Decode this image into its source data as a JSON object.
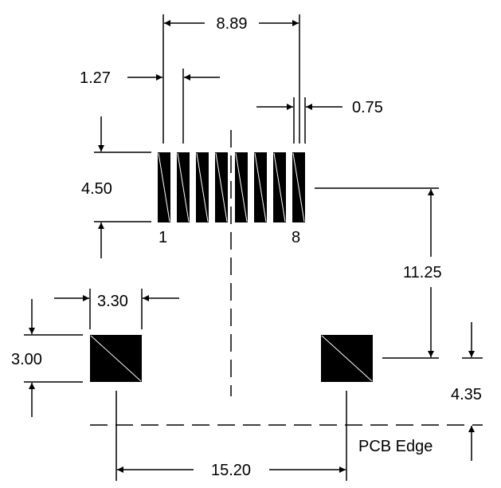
{
  "dimensions": {
    "pin_span": "8.89",
    "pin_pitch": "1.27",
    "pin_width": "0.75",
    "pin_length": "4.50",
    "pin_to_tab_offset": "11.25",
    "tab_width": "3.30",
    "tab_height": "3.00",
    "tab_to_edge": "4.35",
    "tab_spacing": "15.20"
  },
  "labels": {
    "first_pin": "1",
    "last_pin": "8",
    "pcb_edge": "PCB Edge"
  },
  "colors": {
    "ink": "#000000",
    "background": "#ffffff"
  }
}
